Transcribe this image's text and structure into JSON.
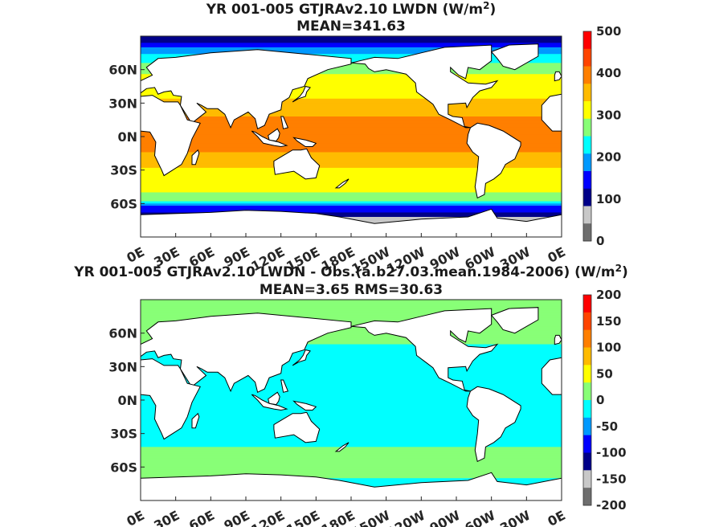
{
  "chart_data": [
    {
      "type": "heatmap",
      "title_main": "YR 001-005 GTJRAv2.10 LWDN (W/m",
      "title_sup": "2",
      "title_close": ")",
      "subtitle": "MEAN=341.63",
      "x_ticks": [
        "0E",
        "30E",
        "60E",
        "90E",
        "120E",
        "150E",
        "180E",
        "150W",
        "120W",
        "90W",
        "60W",
        "30W",
        "0E"
      ],
      "y_ticks": [
        "60N",
        "30N",
        "0N",
        "30S",
        "60S"
      ],
      "y_tick_values": [
        60,
        30,
        0,
        -30,
        -60
      ],
      "xlim": [
        0,
        360
      ],
      "ylim": [
        -90,
        90
      ],
      "colorbar": {
        "ticks": [
          "500",
          "400",
          "300",
          "200",
          "100",
          "0"
        ],
        "range": [
          0,
          500
        ],
        "colors": [
          "#ff0000",
          "#ff4400",
          "#ff7f00",
          "#ffbb00",
          "#ffff00",
          "#88ff77",
          "#00ffff",
          "#0099ff",
          "#0000ff",
          "#000088",
          "#c8c8c8",
          "#6e6e6e"
        ]
      },
      "field": {
        "zonal_profile": [
          [
            90,
            80
          ],
          [
            80,
            160
          ],
          [
            70,
            230
          ],
          [
            62,
            280
          ],
          [
            50,
            300
          ],
          [
            40,
            320
          ],
          [
            30,
            345
          ],
          [
            20,
            370
          ],
          [
            10,
            400
          ],
          [
            0,
            405
          ],
          [
            -10,
            390
          ],
          [
            -20,
            355
          ],
          [
            -30,
            330
          ],
          [
            -40,
            310
          ],
          [
            -50,
            290
          ],
          [
            -58,
            250
          ],
          [
            -63,
            160
          ],
          [
            -68,
            120
          ],
          [
            -75,
            60
          ],
          [
            -90,
            0
          ]
        ]
      }
    },
    {
      "type": "heatmap",
      "title_main": "YR 001-005 GTJRAv2.10 LWDN - Obs.(a.b27.03.mean.1984-2006) (W/m",
      "title_sup": "2",
      "title_close": ")",
      "subtitle": "MEAN=3.65 RMS=30.63",
      "x_ticks": [
        "0E",
        "30E",
        "60E",
        "90E",
        "120E",
        "150E",
        "180E",
        "150W",
        "120W",
        "90W",
        "60W",
        "30W",
        "0E"
      ],
      "y_ticks": [
        "60N",
        "30N",
        "0N",
        "30S",
        "60S"
      ],
      "y_tick_values": [
        60,
        30,
        0,
        -30,
        -60
      ],
      "xlim": [
        0,
        360
      ],
      "ylim": [
        -90,
        90
      ],
      "colorbar": {
        "ticks": [
          "200",
          "150",
          "100",
          "50",
          "0",
          "-50",
          "-100",
          "-150",
          "-200"
        ],
        "range": [
          -200,
          200
        ],
        "colors": [
          "#ff0000",
          "#ff4400",
          "#ff7f00",
          "#ffbb00",
          "#ffff00",
          "#88ff77",
          "#00ffff",
          "#0099ff",
          "#0000ff",
          "#000088",
          "#c8c8c8",
          "#6e6e6e"
        ]
      },
      "field": {
        "zonal_profile": [
          [
            90,
            5
          ],
          [
            80,
            30
          ],
          [
            72,
            20
          ],
          [
            60,
            5
          ],
          [
            40,
            -5
          ],
          [
            20,
            -12
          ],
          [
            0,
            -15
          ],
          [
            -20,
            -12
          ],
          [
            -40,
            -2
          ],
          [
            -55,
            15
          ],
          [
            -60,
            25
          ],
          [
            -65,
            10
          ],
          [
            -75,
            -10
          ],
          [
            -90,
            0
          ]
        ]
      }
    }
  ]
}
